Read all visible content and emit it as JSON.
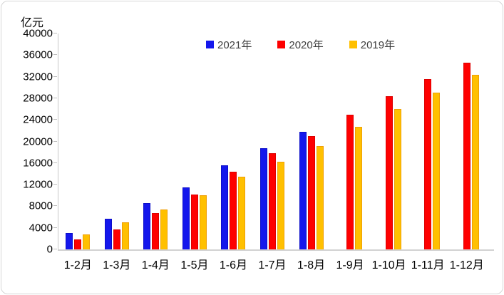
{
  "chart_data": {
    "type": "bar",
    "title": "",
    "ylabel": "亿元",
    "xlabel": "",
    "categories": [
      "1-2月",
      "1-3月",
      "1-4月",
      "1-5月",
      "1-6月",
      "1-7月",
      "1-8月",
      "1-9月",
      "1-10月",
      "1-11月",
      "1-12月"
    ],
    "series": [
      {
        "name": "2021年",
        "color": "#1417EC",
        "border_color": "#0c0ec9",
        "values": [
          3100,
          5700,
          8550,
          11500,
          15600,
          18750,
          21800,
          null,
          null,
          null,
          null
        ]
      },
      {
        "name": "2020年",
        "color": "#FE0000",
        "border_color": "#dd0000",
        "values": [
          1800,
          3750,
          6800,
          10150,
          14350,
          17850,
          21000,
          24900,
          28400,
          31500,
          34600
        ]
      },
      {
        "name": "2019年",
        "color": "#FFC000",
        "border_color": "#ef9f06",
        "values": [
          2750,
          5000,
          7350,
          10050,
          13500,
          16300,
          19100,
          22700,
          26000,
          29100,
          32300
        ]
      }
    ],
    "ylim": [
      0,
      40000
    ],
    "yticks": [
      0,
      4000,
      8000,
      12000,
      16000,
      20000,
      24000,
      28000,
      32000,
      36000,
      40000
    ],
    "grid": false,
    "legend_position": "top-center"
  }
}
